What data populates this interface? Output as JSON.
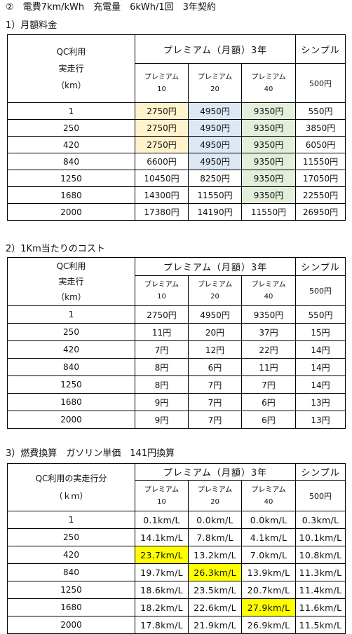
{
  "title": "②　電費7km/kWh　充電量　6kWh/1回　3年契約",
  "section1": {
    "heading": "1）月額料金",
    "row_header": [
      "QC利用",
      "実走行",
      "（km）"
    ],
    "premium_header": "プレミアム（月額）3年",
    "simple_header": "シンプル",
    "sub_headers": [
      [
        "プレミアム",
        "10"
      ],
      [
        "プレミアム",
        "20"
      ],
      [
        "プレミアム",
        "40"
      ]
    ],
    "simple_sub": "500円",
    "rows": [
      {
        "km": "1",
        "v": [
          "2750円",
          "4950円",
          "9350円",
          "550円"
        ]
      },
      {
        "km": "250",
        "v": [
          "2750円",
          "4950円",
          "9350円",
          "3850円"
        ]
      },
      {
        "km": "420",
        "v": [
          "2750円",
          "4950円",
          "9350円",
          "6050円"
        ]
      },
      {
        "km": "840",
        "v": [
          "6600円",
          "4950円",
          "9350円",
          "11550円"
        ]
      },
      {
        "km": "1250",
        "v": [
          "10450円",
          "8250円",
          "9350円",
          "17050円"
        ]
      },
      {
        "km": "1680",
        "v": [
          "14300円",
          "11550円",
          "9350円",
          "22550円"
        ]
      },
      {
        "km": "2000",
        "v": [
          "17380円",
          "14190円",
          "11550円",
          "26950円"
        ]
      }
    ],
    "highlight_colors": {
      "orange": "#fff2cc",
      "blue": "#dde8f5",
      "green": "#e2efda"
    }
  },
  "section2": {
    "heading": "2）1Km当たりのコスト",
    "row_header": [
      "QC利用",
      "実走行",
      "（km）"
    ],
    "premium_header": "プレミアム（月額）3年",
    "simple_header": "シンプル",
    "sub_headers": [
      [
        "プレミアム",
        "10"
      ],
      [
        "プレミアム",
        "20"
      ],
      [
        "プレミアム",
        "40"
      ]
    ],
    "simple_sub": "500円",
    "rows": [
      {
        "km": "1",
        "v": [
          "2750円",
          "4950円",
          "9350円",
          "550円"
        ]
      },
      {
        "km": "250",
        "v": [
          "11円",
          "20円",
          "37円",
          "15円"
        ]
      },
      {
        "km": "420",
        "v": [
          "7円",
          "12円",
          "22円",
          "14円"
        ]
      },
      {
        "km": "840",
        "v": [
          "8円",
          "6円",
          "11円",
          "14円"
        ]
      },
      {
        "km": "1250",
        "v": [
          "8円",
          "7円",
          "7円",
          "14円"
        ]
      },
      {
        "km": "1680",
        "v": [
          "9円",
          "7円",
          "6円",
          "13円"
        ]
      },
      {
        "km": "2000",
        "v": [
          "9円",
          "7円",
          "6円",
          "13円"
        ]
      }
    ]
  },
  "section3": {
    "heading": "3）燃費換算　ガソリン単価　141円換算",
    "row_header": [
      "QC利用の実走行分",
      "（ｋｍ）"
    ],
    "premium_header": "プレミアム（月額）3年",
    "simple_header": "シンプル",
    "sub_headers": [
      [
        "プレミアム",
        "10"
      ],
      [
        "プレミアム",
        "20"
      ],
      [
        "プレミアム",
        "40"
      ]
    ],
    "simple_sub": "500円",
    "rows": [
      {
        "km": "1",
        "v": [
          "0.1km/L",
          "0.0km/L",
          "0.0km/L",
          "0.3km/L"
        ]
      },
      {
        "km": "250",
        "v": [
          "14.1km/L",
          "7.8km/L",
          "4.1km/L",
          "10.1km/L"
        ]
      },
      {
        "km": "420",
        "v": [
          "23.7km/L",
          "13.2km/L",
          "7.0km/L",
          "10.8km/L"
        ]
      },
      {
        "km": "840",
        "v": [
          "19.7km/L",
          "26.3km/L",
          "13.9km/L",
          "11.3km/L"
        ]
      },
      {
        "km": "1250",
        "v": [
          "18.6km/L",
          "23.5km/L",
          "20.7km/L",
          "11.4km/L"
        ]
      },
      {
        "km": "1680",
        "v": [
          "18.2km/L",
          "22.6km/L",
          "27.9km/L",
          "11.6km/L"
        ]
      },
      {
        "km": "2000",
        "v": [
          "17.8km/L",
          "21.9km/L",
          "26.9km/L",
          "11.5km/L"
        ]
      }
    ],
    "highlight_color": "#ffff00"
  }
}
